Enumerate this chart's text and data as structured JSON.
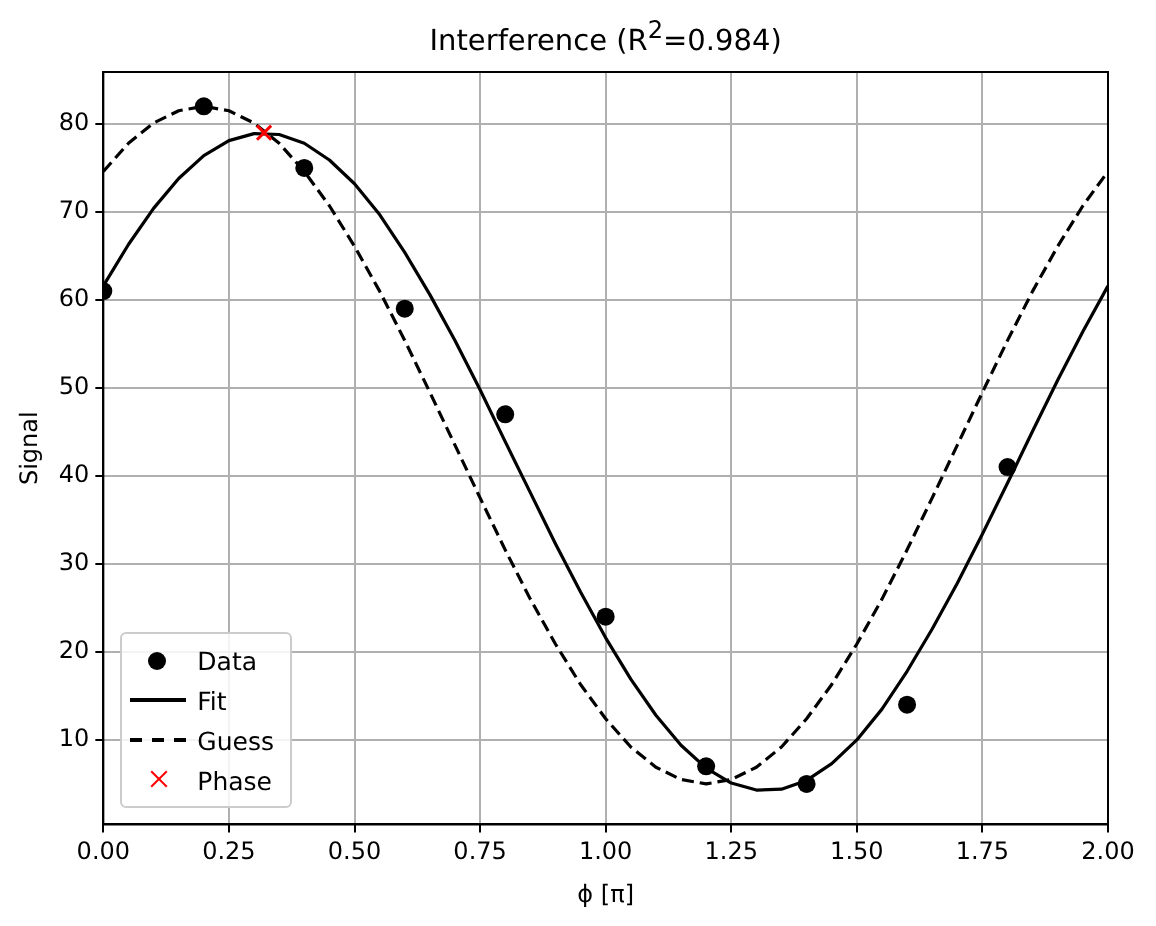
{
  "chart_data": {
    "type": "scatter",
    "title": "Interference (R$^{2}$=0.984)",
    "xlabel": "ϕ [π]",
    "ylabel": "Signal",
    "xlim": [
      0,
      2
    ],
    "xticks": [
      {
        "value": 0,
        "label": "0.00"
      },
      {
        "value": 0.25,
        "label": "0.25"
      },
      {
        "value": 0.5,
        "label": "0.50"
      },
      {
        "value": 0.75,
        "label": "0.75"
      },
      {
        "value": 1,
        "label": "1.00"
      },
      {
        "value": 1.25,
        "label": "1.25"
      },
      {
        "value": 1.5,
        "label": "1.50"
      },
      {
        "value": 1.75,
        "label": "1.75"
      },
      {
        "value": 2,
        "label": "2.00"
      }
    ],
    "ylim": [
      0.4,
      85.9
    ],
    "yticks": [
      10,
      20,
      30,
      40,
      50,
      60,
      70,
      80
    ],
    "grid": true,
    "legend": "bottom left",
    "series": [
      {
        "name": "Data",
        "color": "#000000",
        "marker": "circle",
        "x": [
          0,
          0.2,
          0.4,
          0.6,
          0.8,
          1.0,
          1.2,
          1.4,
          1.6,
          1.8
        ],
        "values": [
          61,
          82,
          75,
          59,
          47,
          24,
          7,
          5,
          14,
          41
        ]
      },
      {
        "name": "Fit",
        "type": "line",
        "color": "#000000",
        "line_style": "solid",
        "marker": "none",
        "x": [
          0,
          0.05,
          0.1,
          0.15,
          0.2,
          0.25,
          0.3,
          0.35,
          0.4,
          0.45,
          0.5,
          0.55,
          0.6,
          0.65,
          0.7,
          0.75,
          0.8,
          0.85,
          0.9,
          0.95,
          1.0,
          1.05,
          1.1,
          1.15,
          1.2,
          1.25,
          1.3,
          1.35,
          1.4,
          1.45,
          1.5,
          1.55,
          1.6,
          1.65,
          1.7,
          1.75,
          1.8,
          1.85,
          1.9,
          1.95,
          2.0
        ],
        "values": [
          61.6,
          66.3,
          70.4,
          73.8,
          76.4,
          78.1,
          78.9,
          78.8,
          77.8,
          75.9,
          73.2,
          69.7,
          65.4,
          60.6,
          55.4,
          49.8,
          43.9,
          38.1,
          32.3,
          26.8,
          21.6,
          16.9,
          12.8,
          9.4,
          6.8,
          5.1,
          4.3,
          4.4,
          5.4,
          7.3,
          10.0,
          13.5,
          17.8,
          22.6,
          27.8,
          33.4,
          39.2,
          45.1,
          50.9,
          56.4,
          61.6
        ]
      },
      {
        "name": "Guess",
        "type": "line",
        "color": "#000000",
        "line_style": "dashed",
        "marker": "none",
        "x": [
          0,
          0.05,
          0.1,
          0.15,
          0.2,
          0.25,
          0.3,
          0.35,
          0.4,
          0.45,
          0.5,
          0.55,
          0.6,
          0.65,
          0.7,
          0.75,
          0.8,
          0.85,
          0.9,
          0.95,
          1.0,
          1.05,
          1.1,
          1.15,
          1.2,
          1.25,
          1.3,
          1.35,
          1.4,
          1.45,
          1.5,
          1.55,
          1.6,
          1.65,
          1.7,
          1.75,
          1.8,
          1.85,
          1.9,
          1.95,
          2.0
        ],
        "values": [
          74.6,
          77.8,
          80.1,
          81.5,
          82.0,
          81.5,
          80.1,
          77.8,
          74.6,
          70.7,
          66.1,
          61.0,
          55.4,
          49.5,
          43.5,
          37.5,
          31.6,
          26.0,
          20.9,
          16.3,
          12.4,
          9.2,
          6.9,
          5.5,
          5.0,
          5.5,
          6.9,
          9.2,
          12.4,
          16.3,
          20.9,
          26.0,
          31.6,
          37.5,
          43.5,
          49.5,
          55.4,
          61.0,
          66.1,
          70.7,
          74.6
        ]
      },
      {
        "name": "Phase",
        "color": "#ff0000",
        "marker": "cross",
        "x": [
          0.32
        ],
        "values": [
          79
        ]
      }
    ]
  }
}
